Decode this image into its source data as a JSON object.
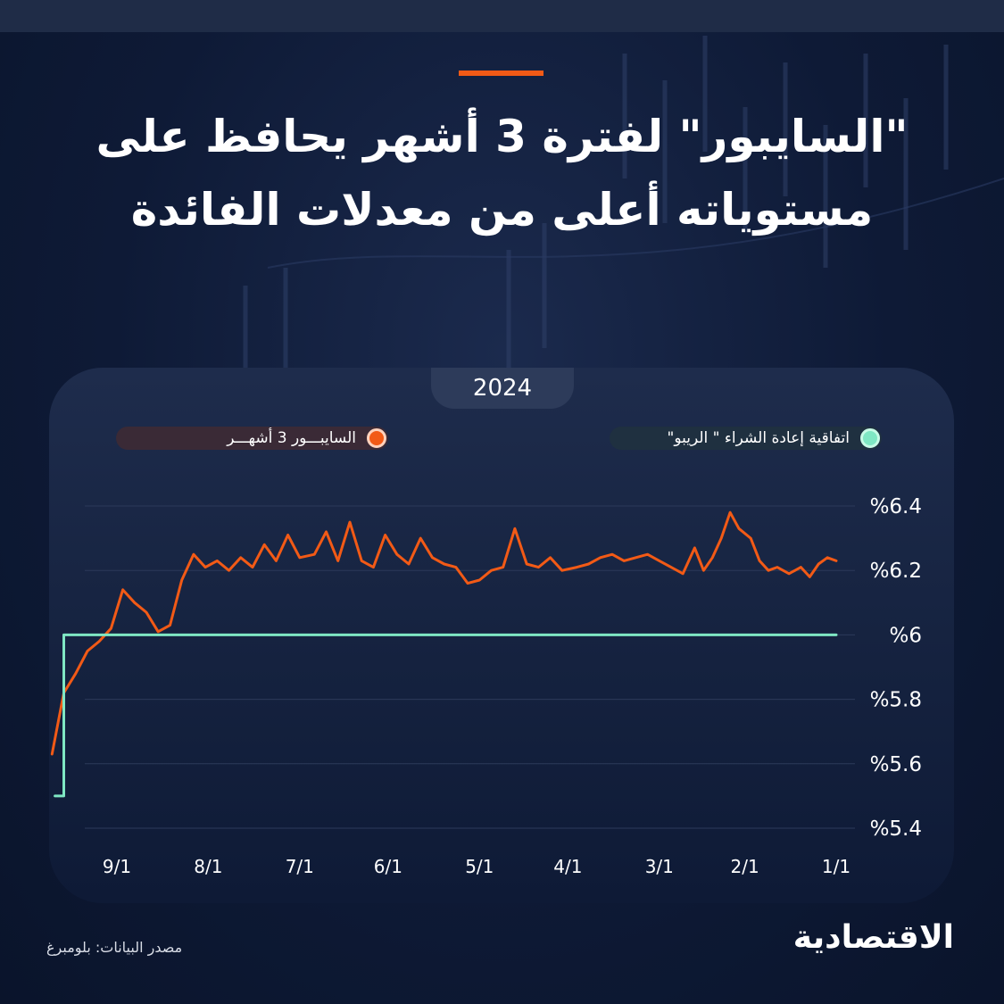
{
  "header": {
    "title_line1": "\"السايبور\" لفترة 3 أشهر يحافظ على",
    "title_line2": "مستوياته أعلى من معدلات الفائدة"
  },
  "colors": {
    "accent": "#f25a16",
    "saibor_line": "#f25a16",
    "repo_line": "#7fe7c3"
  },
  "chart_data": {
    "type": "line",
    "title": "2024",
    "legend_placement": "top",
    "ylim": [
      5.4,
      6.4
    ],
    "y_ticks": [
      {
        "value": 6.4,
        "label": "%6.4"
      },
      {
        "value": 6.2,
        "label": "%6.2"
      },
      {
        "value": 6.0,
        "label": "%6"
      },
      {
        "value": 5.8,
        "label": "%5.8"
      },
      {
        "value": 5.6,
        "label": "%5.6"
      },
      {
        "value": 5.4,
        "label": "%5.4"
      }
    ],
    "x_ticks": [
      "9/1",
      "8/1",
      "7/1",
      "6/1",
      "5/1",
      "4/1",
      "3/1",
      "2/1",
      "1/1"
    ],
    "x_axis_direction": "right-to-left",
    "grid": true,
    "series": [
      {
        "name": "السايبـــور 3 أشهـــر",
        "points": [
          [
            "1/1",
            6.23
          ],
          [
            "1/4",
            6.24
          ],
          [
            "1/7",
            6.22
          ],
          [
            "1/10",
            6.18
          ],
          [
            "1/13",
            6.21
          ],
          [
            "1/17",
            6.19
          ],
          [
            "1/21",
            6.21
          ],
          [
            "1/24",
            6.2
          ],
          [
            "1/27",
            6.23
          ],
          [
            "1/30",
            6.3
          ],
          [
            "2/3",
            6.33
          ],
          [
            "2/6",
            6.38
          ],
          [
            "2/9",
            6.3
          ],
          [
            "2/12",
            6.24
          ],
          [
            "2/15",
            6.2
          ],
          [
            "2/18",
            6.27
          ],
          [
            "2/22",
            6.19
          ],
          [
            "2/26",
            6.21
          ],
          [
            "3/1",
            6.23
          ],
          [
            "3/5",
            6.25
          ],
          [
            "3/9",
            6.24
          ],
          [
            "3/13",
            6.23
          ],
          [
            "3/17",
            6.25
          ],
          [
            "3/21",
            6.24
          ],
          [
            "3/25",
            6.22
          ],
          [
            "3/29",
            6.21
          ],
          [
            "4/3",
            6.2
          ],
          [
            "4/7",
            6.24
          ],
          [
            "4/11",
            6.21
          ],
          [
            "4/15",
            6.22
          ],
          [
            "4/19",
            6.33
          ],
          [
            "4/23",
            6.21
          ],
          [
            "4/27",
            6.2
          ],
          [
            "5/1",
            6.17
          ],
          [
            "5/5",
            6.16
          ],
          [
            "5/9",
            6.21
          ],
          [
            "5/13",
            6.22
          ],
          [
            "5/17",
            6.24
          ],
          [
            "5/21",
            6.3
          ],
          [
            "5/25",
            6.22
          ],
          [
            "5/29",
            6.25
          ],
          [
            "6/2",
            6.31
          ],
          [
            "6/6",
            6.21
          ],
          [
            "6/10",
            6.23
          ],
          [
            "6/14",
            6.35
          ],
          [
            "6/18",
            6.23
          ],
          [
            "6/22",
            6.32
          ],
          [
            "6/26",
            6.25
          ],
          [
            "7/1",
            6.24
          ],
          [
            "7/5",
            6.31
          ],
          [
            "7/9",
            6.23
          ],
          [
            "7/13",
            6.28
          ],
          [
            "7/17",
            6.21
          ],
          [
            "7/21",
            6.24
          ],
          [
            "7/25",
            6.2
          ],
          [
            "7/29",
            6.23
          ],
          [
            "8/2",
            6.21
          ],
          [
            "8/6",
            6.25
          ],
          [
            "8/10",
            6.17
          ],
          [
            "8/14",
            6.03
          ],
          [
            "8/18",
            6.01
          ],
          [
            "8/22",
            6.07
          ],
          [
            "8/26",
            6.1
          ],
          [
            "8/30",
            6.14
          ],
          [
            "9/3",
            6.02
          ],
          [
            "9/7",
            5.98
          ],
          [
            "9/11",
            5.95
          ],
          [
            "9/15",
            5.88
          ],
          [
            "9/19",
            5.82
          ],
          [
            "9/23",
            5.63
          ]
        ]
      },
      {
        "name": "اتفاقية إعادة الشراء \" الريبو\"",
        "points": [
          [
            "1/1",
            6.0
          ],
          [
            "9/19",
            6.0
          ],
          [
            "9/19",
            5.5
          ],
          [
            "9/22",
            5.5
          ]
        ]
      }
    ]
  },
  "footer": {
    "source": "مصدر البيانات: بلومبرغ",
    "logo": "الاقتصادية"
  }
}
